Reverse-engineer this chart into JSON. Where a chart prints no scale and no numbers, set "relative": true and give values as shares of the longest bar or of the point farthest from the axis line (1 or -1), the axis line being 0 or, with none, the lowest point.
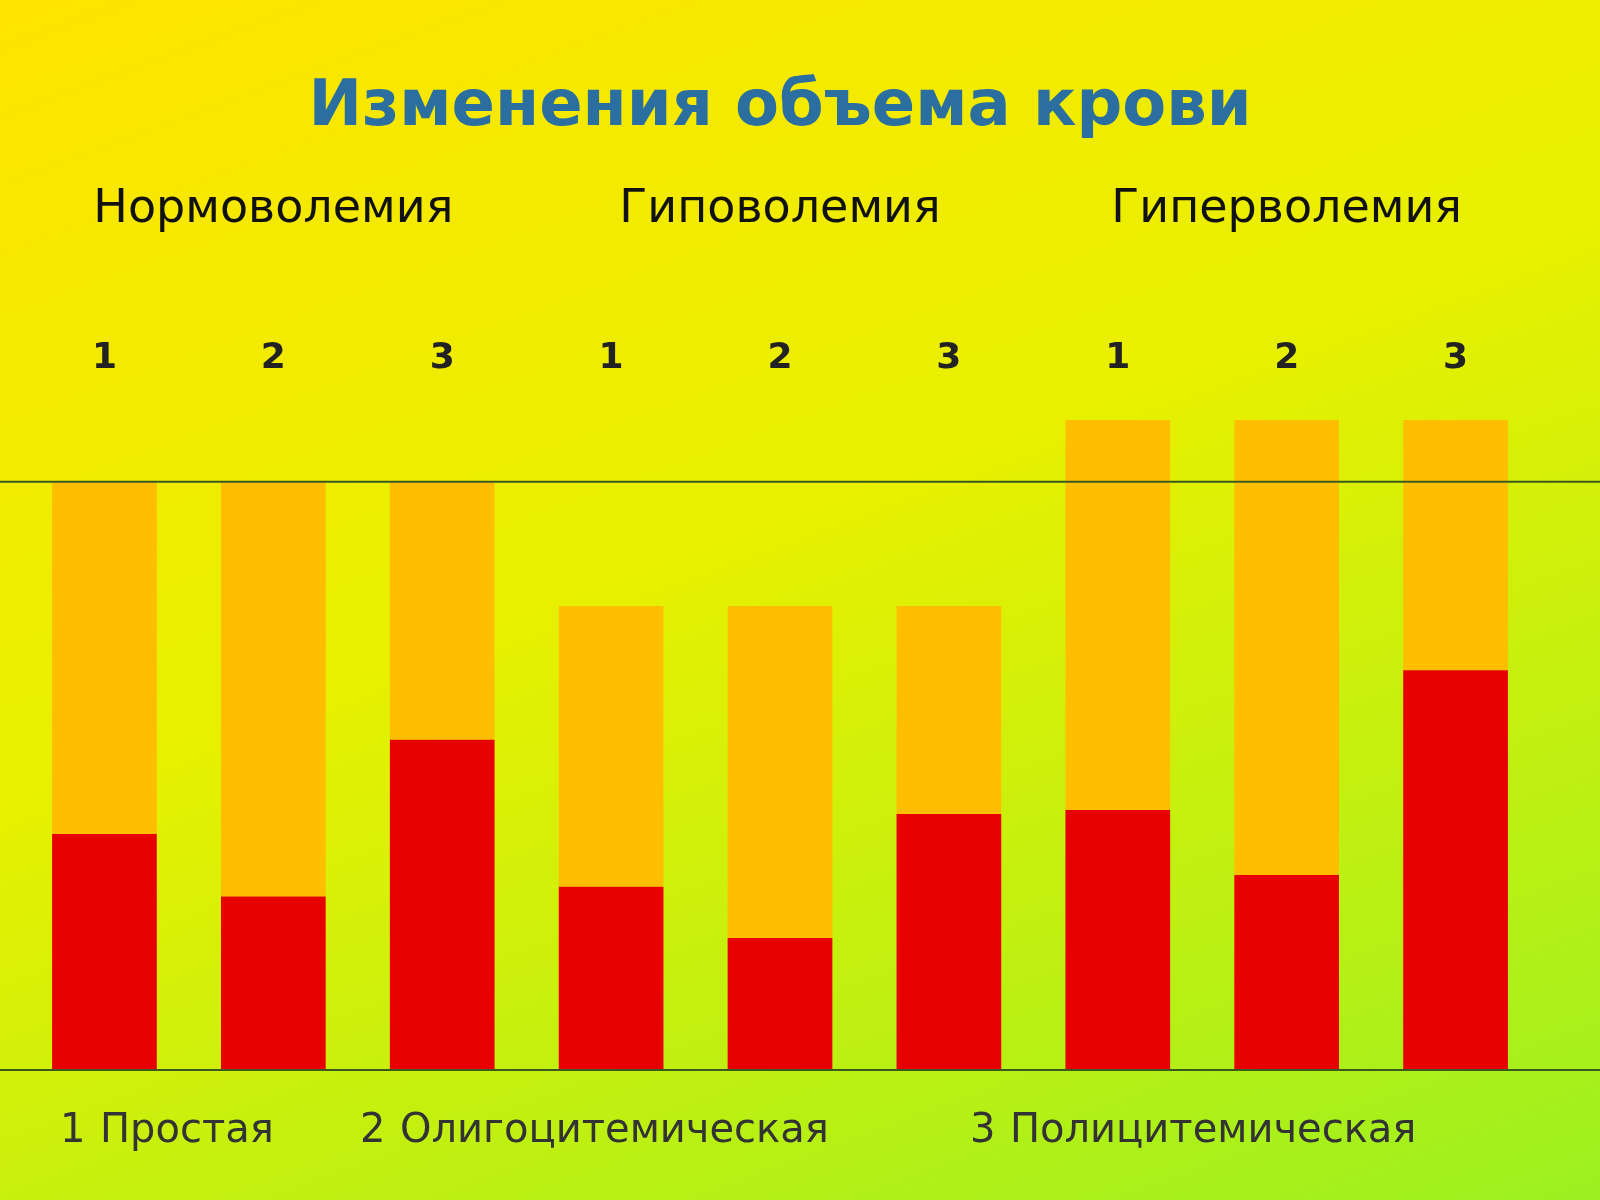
{
  "chart_data": {
    "type": "bar",
    "title": "Изменения объема крови",
    "stacked": true,
    "relative": true,
    "grid": false,
    "legend": false,
    "categories": [
      "1",
      "2",
      "3",
      "1",
      "2",
      "3",
      "1",
      "2",
      "3"
    ],
    "series": [
      {
        "color": "#e80000",
        "values": [
          0.363,
          0.267,
          0.508,
          0.282,
          0.203,
          0.394,
          0.4,
          0.3,
          0.615
        ]
      },
      {
        "color": "#ffbf00",
        "values": [
          0.542,
          0.638,
          0.397,
          0.432,
          0.511,
          0.32,
          0.6,
          0.7,
          0.385
        ]
      }
    ],
    "ref_lines": [
      {
        "axis": "y",
        "value": 0.905,
        "color": "#3a5a20"
      }
    ],
    "annotations": [
      "Нормоволемия",
      "Гиповолемия",
      "Гиперволемия",
      "Простая",
      "Олигоцитемическая",
      "Полицитемическая"
    ]
  }
}
